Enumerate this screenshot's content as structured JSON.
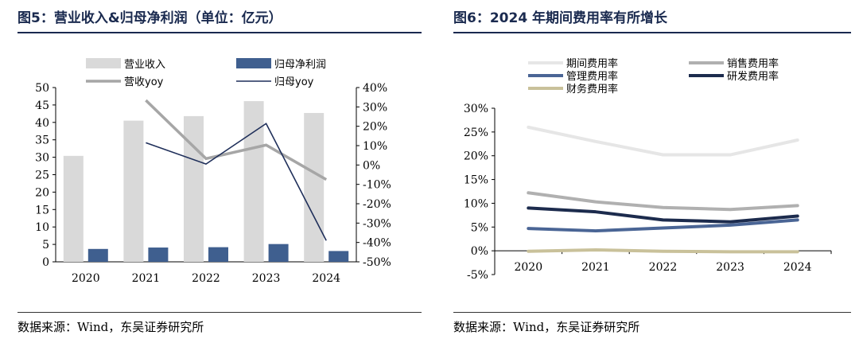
{
  "left": {
    "title": "图5：营业收入&归母净利润（单位：亿元）",
    "source": "数据来源：Wind，东吴证券研究所"
  },
  "right": {
    "title": "图6：2024 年期间费用率有所增长",
    "source": "数据来源：Wind，东吴证券研究所"
  },
  "chart_data": [
    {
      "type": "bar",
      "title": "",
      "categories": [
        "2020",
        "2021",
        "2022",
        "2023",
        "2024"
      ],
      "ylim": [
        0,
        50
      ],
      "y2lim": [
        -50,
        40
      ],
      "yticks": [
        "0",
        "5",
        "10",
        "15",
        "20",
        "25",
        "30",
        "35",
        "40",
        "45",
        "50"
      ],
      "y2ticks": [
        "-50%",
        "-40%",
        "-30%",
        "-20%",
        "-10%",
        "0%",
        "10%",
        "20%",
        "30%",
        "40%"
      ],
      "grid": false,
      "legend_position": "top",
      "series": [
        {
          "name": "营业收入",
          "kind": "bar",
          "axis": "left",
          "color": "#d9d9d9",
          "values": [
            30.4,
            40.5,
            41.8,
            46.1,
            42.7
          ]
        },
        {
          "name": "归母净利润",
          "kind": "bar",
          "axis": "left",
          "color": "#3f5f8f",
          "values": [
            3.7,
            4.1,
            4.2,
            5.1,
            3.1
          ]
        },
        {
          "name": "营收yoy",
          "kind": "line",
          "axis": "right",
          "color": "#a6a6a6",
          "values": [
            null,
            33.4,
            3.3,
            10.3,
            -7.5
          ]
        },
        {
          "name": "归母yoy",
          "kind": "line",
          "axis": "right",
          "color": "#1f2f5a",
          "values": [
            null,
            11.5,
            0.5,
            21.4,
            -39.0
          ]
        }
      ]
    },
    {
      "type": "line",
      "title": "",
      "categories": [
        "2020",
        "2021",
        "2022",
        "2023",
        "2024"
      ],
      "ylim": [
        -5,
        30
      ],
      "yticks": [
        "-5%",
        "0%",
        "5%",
        "10%",
        "15%",
        "20%",
        "25%",
        "30%"
      ],
      "grid": false,
      "legend_position": "top",
      "series": [
        {
          "name": "期间费用率",
          "color": "#e6e6e6",
          "values": [
            26.0,
            23.0,
            20.2,
            20.2,
            23.3
          ]
        },
        {
          "name": "销售费用率",
          "color": "#b0b0b0",
          "values": [
            12.2,
            10.3,
            9.1,
            8.7,
            9.5
          ]
        },
        {
          "name": "管理费用率",
          "color": "#4a6595",
          "values": [
            4.7,
            4.2,
            4.8,
            5.4,
            6.5
          ]
        },
        {
          "name": "研发费用率",
          "color": "#1c2b4d",
          "values": [
            9.0,
            8.2,
            6.5,
            6.1,
            7.3
          ]
        },
        {
          "name": "财务费用率",
          "color": "#c9c19a",
          "values": [
            -0.1,
            0.2,
            -0.1,
            -0.2,
            -0.2
          ]
        }
      ]
    }
  ]
}
